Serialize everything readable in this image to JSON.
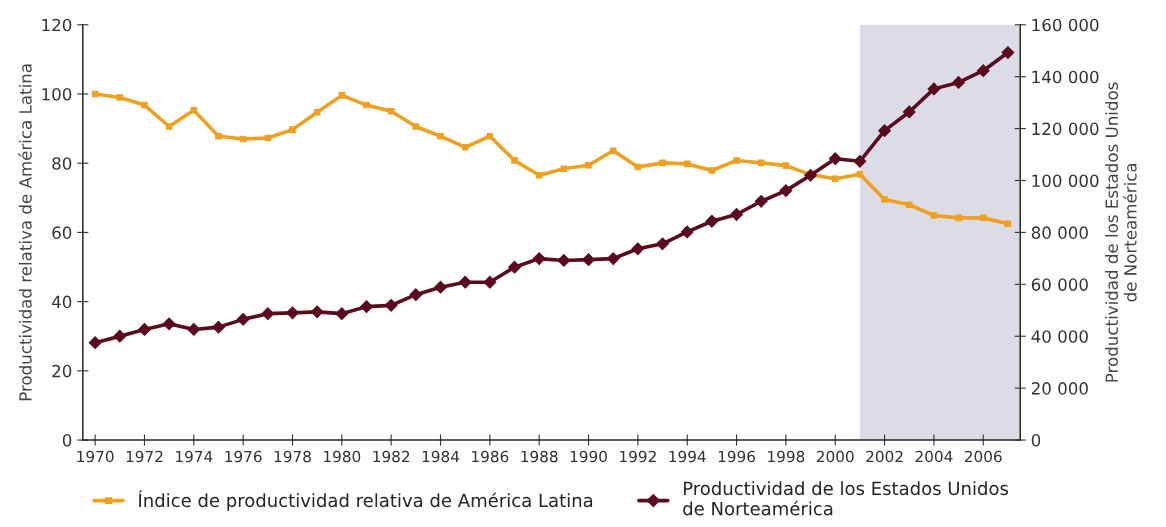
{
  "chart_data": {
    "type": "line",
    "ylabel": "Productividad relativa de América Latina",
    "y2label": "Productividad de los Estados Unidos\nde Norteamérica",
    "x": [
      1970,
      1971,
      1972,
      1973,
      1974,
      1975,
      1976,
      1977,
      1978,
      1979,
      1980,
      1981,
      1982,
      1983,
      1984,
      1985,
      1986,
      1987,
      1988,
      1989,
      1990,
      1991,
      1992,
      1993,
      1994,
      1995,
      1996,
      1997,
      1998,
      1999,
      2000,
      2001,
      2002,
      2003,
      2004,
      2005,
      2006,
      2007
    ],
    "xlim": [
      1969.5,
      2007.5
    ],
    "xticks": [
      {
        "value": 1970,
        "label": "1970"
      },
      {
        "value": 1972,
        "label": "1972"
      },
      {
        "value": 1974,
        "label": "1974"
      },
      {
        "value": 1976,
        "label": "1976"
      },
      {
        "value": 1978,
        "label": "1978"
      },
      {
        "value": 1980,
        "label": "1980"
      },
      {
        "value": 1982,
        "label": "1982"
      },
      {
        "value": 1984,
        "label": "1984"
      },
      {
        "value": 1986,
        "label": "1986"
      },
      {
        "value": 1988,
        "label": "1988"
      },
      {
        "value": 1990,
        "label": "1990"
      },
      {
        "value": 1992,
        "label": "1992"
      },
      {
        "value": 1994,
        "label": "1994"
      },
      {
        "value": 1996,
        "label": "1996"
      },
      {
        "value": 1998,
        "label": "1998"
      },
      {
        "value": 2000,
        "label": "2000"
      },
      {
        "value": 2002,
        "label": "2002"
      },
      {
        "value": 2004,
        "label": "2004"
      },
      {
        "value": 2006,
        "label": "2006"
      }
    ],
    "ylim": [
      0,
      120
    ],
    "yticks": [
      0,
      20,
      40,
      60,
      80,
      100,
      120
    ],
    "y2lim": [
      0,
      160000
    ],
    "y2ticks": [
      0,
      {
        "value": 20000,
        "label": "20 000"
      },
      {
        "value": 40000,
        "label": "40 000"
      },
      {
        "value": 60000,
        "label": "60 000"
      },
      {
        "value": 80000,
        "label": "80 000"
      },
      {
        "value": 100000,
        "label": "100 000"
      },
      {
        "value": 120000,
        "label": "120 000"
      },
      {
        "value": 140000,
        "label": "140 000"
      },
      {
        "value": 160000,
        "label": "160 000"
      }
    ],
    "series": [
      {
        "name": "Índice de productividad relativa de América Latina",
        "color": "#f0a020",
        "marker": "square",
        "values": [
          100,
          99,
          96.8,
          90.6,
          95.3,
          87.8,
          87,
          87.3,
          89.7,
          94.7,
          99.6,
          96.8,
          95,
          90.6,
          87.8,
          84.6,
          87.8,
          80.8,
          76.5,
          78.4,
          79.4,
          83.6,
          78.9,
          80.1,
          79.8,
          77.9,
          80.8,
          80.1,
          79.3,
          76.7,
          75.5,
          76.8,
          69.5,
          68,
          64.9,
          64.2,
          64.2,
          62.5
        ]
      },
      {
        "name": "Productividad de los Estados Unidos\nde Norteamérica",
        "color": "#5c0a1e",
        "marker": "diamond",
        "axis": "y2",
        "values": [
          37500,
          40000,
          42600,
          44800,
          42600,
          43500,
          46500,
          48700,
          49000,
          49400,
          48700,
          51400,
          51900,
          56000,
          58900,
          60800,
          60800,
          66600,
          69900,
          69200,
          69500,
          69900,
          73700,
          75600,
          80200,
          84300,
          86900,
          92000,
          96100,
          102000,
          108400,
          107400,
          119200,
          126400,
          135300,
          137800,
          142300,
          149300
        ]
      }
    ],
    "bands": [
      {
        "axis": "x",
        "from": 2001,
        "to": 2007.5,
        "color": "#dcdce6"
      }
    ],
    "legend": "bottom",
    "grid": false,
    "line_style": "solid"
  }
}
